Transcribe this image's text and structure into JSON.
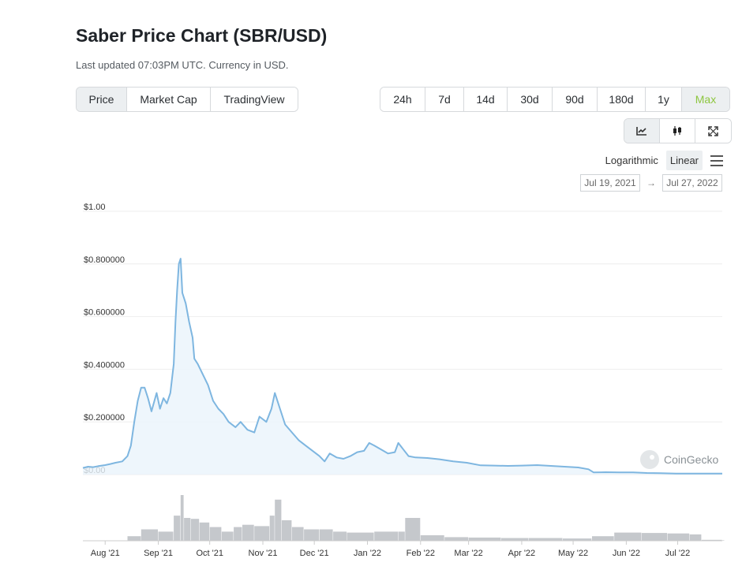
{
  "header": {
    "title": "Saber Price Chart (SBR/USD)",
    "subtitle": "Last updated 07:03PM UTC. Currency in USD."
  },
  "chart_type_tabs": [
    {
      "label": "Price",
      "active": true
    },
    {
      "label": "Market Cap",
      "active": false
    },
    {
      "label": "TradingView",
      "active": false
    }
  ],
  "range_tabs": [
    {
      "label": "24h",
      "active": false
    },
    {
      "label": "7d",
      "active": false
    },
    {
      "label": "14d",
      "active": false
    },
    {
      "label": "30d",
      "active": false
    },
    {
      "label": "90d",
      "active": false
    },
    {
      "label": "180d",
      "active": false
    },
    {
      "label": "1y",
      "active": false
    },
    {
      "label": "Max",
      "active": true
    }
  ],
  "tools": [
    {
      "name": "line-chart-icon",
      "active": true
    },
    {
      "name": "candlestick-icon",
      "active": false
    },
    {
      "name": "fullscreen-icon",
      "active": false
    }
  ],
  "scale": {
    "log_label": "Logarithmic",
    "linear_label": "Linear",
    "selected": "Linear"
  },
  "date_range": {
    "from": "Jul 19, 2021",
    "arrow": "→",
    "to": "Jul 27, 2022"
  },
  "watermark": "CoinGecko",
  "colors": {
    "line": "#7eb6e0",
    "area": "#eaf4fb",
    "volume": "#c5c8cc",
    "active_green": "#8dc63f"
  },
  "chart_data": {
    "type": "line",
    "ylim": [
      0,
      1
    ],
    "y_tick_labels": [
      "$0.00",
      "$0.200000",
      "$0.400000",
      "$0.600000",
      "$0.800000",
      "$1.00"
    ],
    "y_tick_values": [
      0,
      0.2,
      0.4,
      0.6,
      0.8,
      1.0
    ],
    "x_tick_labels": [
      "Aug '21",
      "Sep '21",
      "Oct '21",
      "Nov '21",
      "Dec '21",
      "Jan '22",
      "Feb '22",
      "Mar '22",
      "Apr '22",
      "May '22",
      "Jun '22",
      "Jul '22"
    ],
    "x_tick_values": [
      "2021-08-01",
      "2021-09-01",
      "2021-10-01",
      "2021-11-01",
      "2021-12-01",
      "2022-01-01",
      "2022-02-01",
      "2022-03-01",
      "2022-04-01",
      "2022-05-01",
      "2022-06-01",
      "2022-07-01"
    ],
    "x_range": [
      "2021-07-19",
      "2022-07-27"
    ],
    "price": [
      [
        "2021-07-19",
        0.025
      ],
      [
        "2021-07-22",
        0.03
      ],
      [
        "2021-07-25",
        0.028
      ],
      [
        "2021-07-28",
        0.032
      ],
      [
        "2021-08-01",
        0.036
      ],
      [
        "2021-08-04",
        0.04
      ],
      [
        "2021-08-07",
        0.045
      ],
      [
        "2021-08-11",
        0.05
      ],
      [
        "2021-08-14",
        0.07
      ],
      [
        "2021-08-16",
        0.11
      ],
      [
        "2021-08-18",
        0.2
      ],
      [
        "2021-08-20",
        0.28
      ],
      [
        "2021-08-22",
        0.33
      ],
      [
        "2021-08-24",
        0.33
      ],
      [
        "2021-08-26",
        0.29
      ],
      [
        "2021-08-28",
        0.24
      ],
      [
        "2021-08-31",
        0.31
      ],
      [
        "2021-09-02",
        0.25
      ],
      [
        "2021-09-04",
        0.29
      ],
      [
        "2021-09-06",
        0.27
      ],
      [
        "2021-09-08",
        0.31
      ],
      [
        "2021-09-10",
        0.42
      ],
      [
        "2021-09-11",
        0.58
      ],
      [
        "2021-09-12",
        0.7
      ],
      [
        "2021-09-13",
        0.8
      ],
      [
        "2021-09-14",
        0.82
      ],
      [
        "2021-09-15",
        0.69
      ],
      [
        "2021-09-17",
        0.65
      ],
      [
        "2021-09-19",
        0.58
      ],
      [
        "2021-09-21",
        0.52
      ],
      [
        "2021-09-22",
        0.44
      ],
      [
        "2021-09-24",
        0.42
      ],
      [
        "2021-09-27",
        0.38
      ],
      [
        "2021-09-30",
        0.34
      ],
      [
        "2021-10-03",
        0.28
      ],
      [
        "2021-10-06",
        0.25
      ],
      [
        "2021-10-09",
        0.23
      ],
      [
        "2021-10-12",
        0.2
      ],
      [
        "2021-10-16",
        0.18
      ],
      [
        "2021-10-19",
        0.2
      ],
      [
        "2021-10-23",
        0.17
      ],
      [
        "2021-10-27",
        0.16
      ],
      [
        "2021-10-30",
        0.22
      ],
      [
        "2021-11-03",
        0.2
      ],
      [
        "2021-11-06",
        0.25
      ],
      [
        "2021-11-08",
        0.31
      ],
      [
        "2021-11-11",
        0.25
      ],
      [
        "2021-11-14",
        0.19
      ],
      [
        "2021-11-18",
        0.16
      ],
      [
        "2021-11-22",
        0.13
      ],
      [
        "2021-11-26",
        0.11
      ],
      [
        "2021-11-30",
        0.09
      ],
      [
        "2021-12-04",
        0.07
      ],
      [
        "2021-12-07",
        0.05
      ],
      [
        "2021-12-10",
        0.08
      ],
      [
        "2021-12-14",
        0.065
      ],
      [
        "2021-12-18",
        0.06
      ],
      [
        "2021-12-22",
        0.07
      ],
      [
        "2021-12-26",
        0.085
      ],
      [
        "2021-12-30",
        0.09
      ],
      [
        "2022-01-02",
        0.12
      ],
      [
        "2022-01-05",
        0.11
      ],
      [
        "2022-01-09",
        0.095
      ],
      [
        "2022-01-13",
        0.08
      ],
      [
        "2022-01-17",
        0.085
      ],
      [
        "2022-01-19",
        0.12
      ],
      [
        "2022-01-22",
        0.095
      ],
      [
        "2022-01-25",
        0.07
      ],
      [
        "2022-01-29",
        0.065
      ],
      [
        "2022-02-05",
        0.063
      ],
      [
        "2022-02-12",
        0.058
      ],
      [
        "2022-02-20",
        0.05
      ],
      [
        "2022-02-28",
        0.045
      ],
      [
        "2022-03-08",
        0.035
      ],
      [
        "2022-03-16",
        0.034
      ],
      [
        "2022-03-24",
        0.033
      ],
      [
        "2022-04-01",
        0.034
      ],
      [
        "2022-04-10",
        0.036
      ],
      [
        "2022-04-18",
        0.033
      ],
      [
        "2022-04-26",
        0.03
      ],
      [
        "2022-05-04",
        0.027
      ],
      [
        "2022-05-10",
        0.02
      ],
      [
        "2022-05-13",
        0.008
      ],
      [
        "2022-05-20",
        0.009
      ],
      [
        "2022-05-28",
        0.008
      ],
      [
        "2022-06-05",
        0.008
      ],
      [
        "2022-06-13",
        0.006
      ],
      [
        "2022-06-21",
        0.005
      ],
      [
        "2022-06-30",
        0.004
      ],
      [
        "2022-07-09",
        0.004
      ],
      [
        "2022-07-18",
        0.004
      ],
      [
        "2022-07-27",
        0.004
      ]
    ],
    "volume": [
      [
        "2021-08-14",
        0.1
      ],
      [
        "2021-08-22",
        0.25
      ],
      [
        "2021-09-01",
        0.2
      ],
      [
        "2021-09-10",
        0.55
      ],
      [
        "2021-09-14",
        1.0
      ],
      [
        "2021-09-16",
        0.5
      ],
      [
        "2021-09-20",
        0.48
      ],
      [
        "2021-09-25",
        0.4
      ],
      [
        "2021-10-01",
        0.3
      ],
      [
        "2021-10-08",
        0.2
      ],
      [
        "2021-10-15",
        0.3
      ],
      [
        "2021-10-20",
        0.35
      ],
      [
        "2021-10-27",
        0.32
      ],
      [
        "2021-11-05",
        0.55
      ],
      [
        "2021-11-08",
        0.9
      ],
      [
        "2021-11-12",
        0.45
      ],
      [
        "2021-11-18",
        0.3
      ],
      [
        "2021-11-25",
        0.25
      ],
      [
        "2021-12-04",
        0.25
      ],
      [
        "2021-12-12",
        0.2
      ],
      [
        "2021-12-20",
        0.18
      ],
      [
        "2022-01-05",
        0.2
      ],
      [
        "2022-01-19",
        0.2
      ],
      [
        "2022-01-23",
        0.5
      ],
      [
        "2022-02-01",
        0.12
      ],
      [
        "2022-02-15",
        0.08
      ],
      [
        "2022-03-01",
        0.07
      ],
      [
        "2022-03-20",
        0.06
      ],
      [
        "2022-04-05",
        0.06
      ],
      [
        "2022-04-25",
        0.05
      ],
      [
        "2022-05-12",
        0.1
      ],
      [
        "2022-05-25",
        0.18
      ],
      [
        "2022-06-10",
        0.17
      ],
      [
        "2022-06-25",
        0.16
      ],
      [
        "2022-07-08",
        0.14
      ],
      [
        "2022-07-15",
        0.02
      ],
      [
        "2022-07-27",
        0.01
      ]
    ]
  }
}
